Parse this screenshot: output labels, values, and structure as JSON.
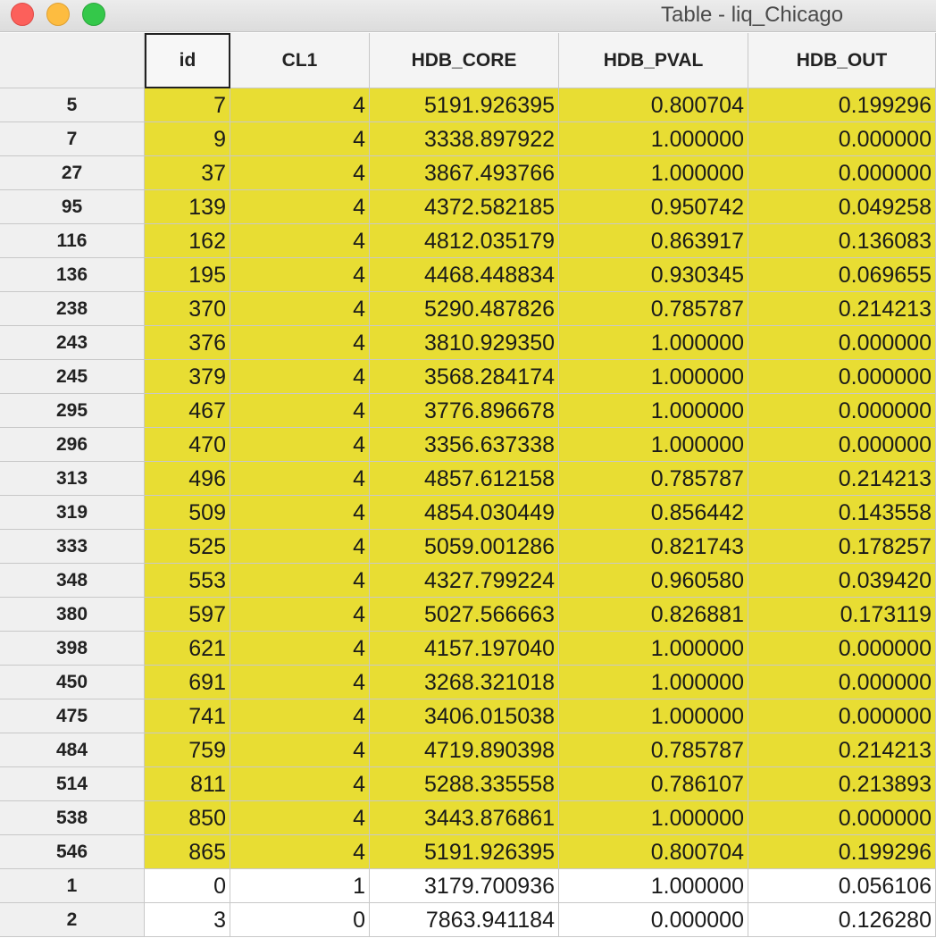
{
  "window": {
    "title": "Table - liq_Chicago"
  },
  "table": {
    "columns": [
      "id",
      "CL1",
      "HDB_CORE",
      "HDB_PVAL",
      "HDB_OUT"
    ],
    "highlight_color": "#e8dd33",
    "rows": [
      {
        "label": "5",
        "id": "7",
        "CL1": "4",
        "HDB_CORE": "5191.926395",
        "HDB_PVAL": "0.800704",
        "HDB_OUT": "0.199296",
        "highlighted": true
      },
      {
        "label": "7",
        "id": "9",
        "CL1": "4",
        "HDB_CORE": "3338.897922",
        "HDB_PVAL": "1.000000",
        "HDB_OUT": "0.000000",
        "highlighted": true
      },
      {
        "label": "27",
        "id": "37",
        "CL1": "4",
        "HDB_CORE": "3867.493766",
        "HDB_PVAL": "1.000000",
        "HDB_OUT": "0.000000",
        "highlighted": true
      },
      {
        "label": "95",
        "id": "139",
        "CL1": "4",
        "HDB_CORE": "4372.582185",
        "HDB_PVAL": "0.950742",
        "HDB_OUT": "0.049258",
        "highlighted": true
      },
      {
        "label": "116",
        "id": "162",
        "CL1": "4",
        "HDB_CORE": "4812.035179",
        "HDB_PVAL": "0.863917",
        "HDB_OUT": "0.136083",
        "highlighted": true
      },
      {
        "label": "136",
        "id": "195",
        "CL1": "4",
        "HDB_CORE": "4468.448834",
        "HDB_PVAL": "0.930345",
        "HDB_OUT": "0.069655",
        "highlighted": true
      },
      {
        "label": "238",
        "id": "370",
        "CL1": "4",
        "HDB_CORE": "5290.487826",
        "HDB_PVAL": "0.785787",
        "HDB_OUT": "0.214213",
        "highlighted": true
      },
      {
        "label": "243",
        "id": "376",
        "CL1": "4",
        "HDB_CORE": "3810.929350",
        "HDB_PVAL": "1.000000",
        "HDB_OUT": "0.000000",
        "highlighted": true
      },
      {
        "label": "245",
        "id": "379",
        "CL1": "4",
        "HDB_CORE": "3568.284174",
        "HDB_PVAL": "1.000000",
        "HDB_OUT": "0.000000",
        "highlighted": true
      },
      {
        "label": "295",
        "id": "467",
        "CL1": "4",
        "HDB_CORE": "3776.896678",
        "HDB_PVAL": "1.000000",
        "HDB_OUT": "0.000000",
        "highlighted": true
      },
      {
        "label": "296",
        "id": "470",
        "CL1": "4",
        "HDB_CORE": "3356.637338",
        "HDB_PVAL": "1.000000",
        "HDB_OUT": "0.000000",
        "highlighted": true
      },
      {
        "label": "313",
        "id": "496",
        "CL1": "4",
        "HDB_CORE": "4857.612158",
        "HDB_PVAL": "0.785787",
        "HDB_OUT": "0.214213",
        "highlighted": true
      },
      {
        "label": "319",
        "id": "509",
        "CL1": "4",
        "HDB_CORE": "4854.030449",
        "HDB_PVAL": "0.856442",
        "HDB_OUT": "0.143558",
        "highlighted": true
      },
      {
        "label": "333",
        "id": "525",
        "CL1": "4",
        "HDB_CORE": "5059.001286",
        "HDB_PVAL": "0.821743",
        "HDB_OUT": "0.178257",
        "highlighted": true
      },
      {
        "label": "348",
        "id": "553",
        "CL1": "4",
        "HDB_CORE": "4327.799224",
        "HDB_PVAL": "0.960580",
        "HDB_OUT": "0.039420",
        "highlighted": true
      },
      {
        "label": "380",
        "id": "597",
        "CL1": "4",
        "HDB_CORE": "5027.566663",
        "HDB_PVAL": "0.826881",
        "HDB_OUT": "0.173119",
        "highlighted": true
      },
      {
        "label": "398",
        "id": "621",
        "CL1": "4",
        "HDB_CORE": "4157.197040",
        "HDB_PVAL": "1.000000",
        "HDB_OUT": "0.000000",
        "highlighted": true
      },
      {
        "label": "450",
        "id": "691",
        "CL1": "4",
        "HDB_CORE": "3268.321018",
        "HDB_PVAL": "1.000000",
        "HDB_OUT": "0.000000",
        "highlighted": true
      },
      {
        "label": "475",
        "id": "741",
        "CL1": "4",
        "HDB_CORE": "3406.015038",
        "HDB_PVAL": "1.000000",
        "HDB_OUT": "0.000000",
        "highlighted": true
      },
      {
        "label": "484",
        "id": "759",
        "CL1": "4",
        "HDB_CORE": "4719.890398",
        "HDB_PVAL": "0.785787",
        "HDB_OUT": "0.214213",
        "highlighted": true
      },
      {
        "label": "514",
        "id": "811",
        "CL1": "4",
        "HDB_CORE": "5288.335558",
        "HDB_PVAL": "0.786107",
        "HDB_OUT": "0.213893",
        "highlighted": true
      },
      {
        "label": "538",
        "id": "850",
        "CL1": "4",
        "HDB_CORE": "3443.876861",
        "HDB_PVAL": "1.000000",
        "HDB_OUT": "0.000000",
        "highlighted": true
      },
      {
        "label": "546",
        "id": "865",
        "CL1": "4",
        "HDB_CORE": "5191.926395",
        "HDB_PVAL": "0.800704",
        "HDB_OUT": "0.199296",
        "highlighted": true
      },
      {
        "label": "1",
        "id": "0",
        "CL1": "1",
        "HDB_CORE": "3179.700936",
        "HDB_PVAL": "1.000000",
        "HDB_OUT": "0.056106",
        "highlighted": false
      },
      {
        "label": "2",
        "id": "3",
        "CL1": "0",
        "HDB_CORE": "7863.941184",
        "HDB_PVAL": "0.000000",
        "HDB_OUT": "0.126280",
        "highlighted": false
      }
    ]
  }
}
